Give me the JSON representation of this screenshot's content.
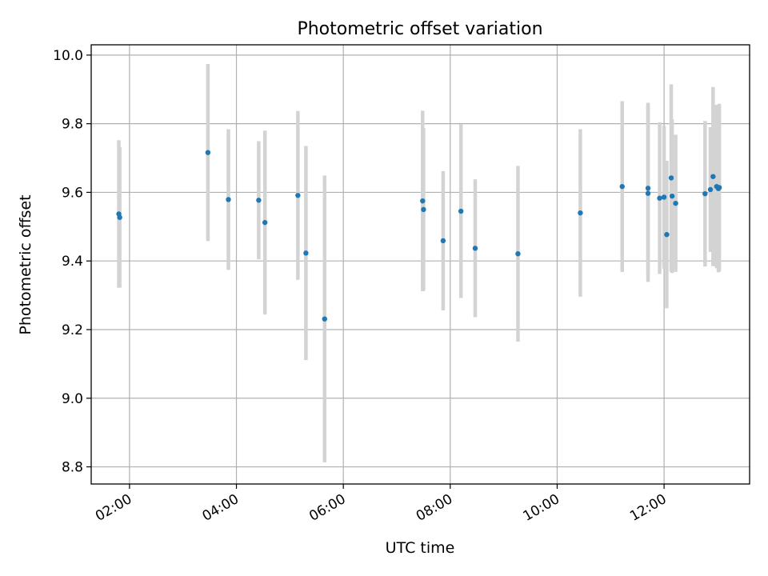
{
  "chart_data": {
    "type": "scatter",
    "title": "Photometric offset variation",
    "xlabel": "UTC time",
    "ylabel": "Photometric offset",
    "x_tick_labels": [
      "02:00",
      "04:00",
      "06:00",
      "08:00",
      "10:00",
      "12:00"
    ],
    "x_ticks": [
      "02:00",
      "04:00",
      "06:00",
      "08:00",
      "10:00",
      "12:00"
    ],
    "xlim": [
      "01:17",
      "13:36"
    ],
    "y_ticks": [
      8.8,
      9.0,
      9.2,
      9.4,
      9.6,
      9.8,
      10.0
    ],
    "y_tick_labels": [
      "8.8",
      "9.0",
      "9.2",
      "9.4",
      "9.6",
      "9.8",
      "10.0"
    ],
    "ylim": [
      8.75,
      10.03
    ],
    "grid": true,
    "point_color": "#1f77b4",
    "errorbar_color": "#d3d3d3",
    "points": [
      {
        "x": "01:48",
        "y": 9.537,
        "err": 0.215
      },
      {
        "x": "01:49",
        "y": 9.527,
        "err": 0.205
      },
      {
        "x": "03:28",
        "y": 9.716,
        "err": 0.258
      },
      {
        "x": "03:51",
        "y": 9.579,
        "err": 0.205
      },
      {
        "x": "04:25",
        "y": 9.577,
        "err": 0.172
      },
      {
        "x": "04:32",
        "y": 9.512,
        "err": 0.268
      },
      {
        "x": "05:09",
        "y": 9.591,
        "err": 0.246
      },
      {
        "x": "05:18",
        "y": 9.423,
        "err": 0.312
      },
      {
        "x": "05:39",
        "y": 9.231,
        "err": 0.418
      },
      {
        "x": "07:29",
        "y": 9.575,
        "err": 0.263
      },
      {
        "x": "07:30",
        "y": 9.55,
        "err": 0.237
      },
      {
        "x": "07:52",
        "y": 9.459,
        "err": 0.203
      },
      {
        "x": "08:12",
        "y": 9.545,
        "err": 0.253
      },
      {
        "x": "08:28",
        "y": 9.437,
        "err": 0.201
      },
      {
        "x": "09:16",
        "y": 9.421,
        "err": 0.256
      },
      {
        "x": "10:26",
        "y": 9.54,
        "err": 0.244
      },
      {
        "x": "11:13",
        "y": 9.617,
        "err": 0.249
      },
      {
        "x": "11:42",
        "y": 9.612,
        "err": 0.249
      },
      {
        "x": "11:42",
        "y": 9.597,
        "err": 0.258
      },
      {
        "x": "11:55",
        "y": 9.583,
        "err": 0.221
      },
      {
        "x": "12:00",
        "y": 9.586,
        "err": 0.208
      },
      {
        "x": "12:03",
        "y": 9.477,
        "err": 0.215
      },
      {
        "x": "12:08",
        "y": 9.642,
        "err": 0.273
      },
      {
        "x": "12:09",
        "y": 9.589,
        "err": 0.224
      },
      {
        "x": "12:13",
        "y": 9.568,
        "err": 0.2
      },
      {
        "x": "12:46",
        "y": 9.596,
        "err": 0.212
      },
      {
        "x": "12:52",
        "y": 9.608,
        "err": 0.182
      },
      {
        "x": "12:55",
        "y": 9.646,
        "err": 0.261
      },
      {
        "x": "12:59",
        "y": 9.617,
        "err": 0.238
      },
      {
        "x": "13:01",
        "y": 9.611,
        "err": 0.244
      },
      {
        "x": "13:02",
        "y": 9.614,
        "err": 0.244
      }
    ]
  }
}
